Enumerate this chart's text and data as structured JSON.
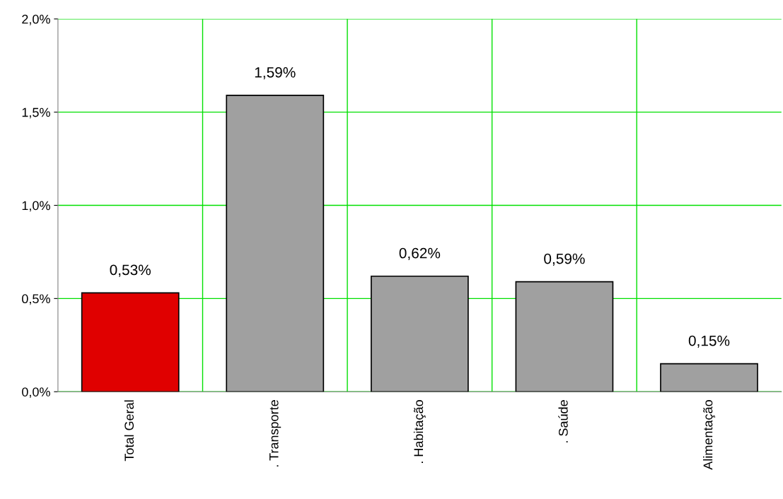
{
  "chart_data": {
    "type": "bar",
    "categories": [
      "Total Geral",
      ". Transporte",
      ". Habitação",
      ". Saúde",
      "Alimentação"
    ],
    "values": [
      0.53,
      1.59,
      0.62,
      0.59,
      0.15
    ],
    "colors": [
      "#e00000",
      "#a0a0a0",
      "#a0a0a0",
      "#a0a0a0",
      "#a0a0a0"
    ],
    "value_labels": [
      "0,53%",
      "1,59%",
      "0,62%",
      "0,59%",
      "0,15%"
    ],
    "ylim": [
      0,
      2.0
    ],
    "yticks": [
      {
        "value": 0,
        "label": "0,0%"
      },
      {
        "value": 0.5,
        "label": "0,5%"
      },
      {
        "value": 1.0,
        "label": "1,0%"
      },
      {
        "value": 1.5,
        "label": "1,5%"
      },
      {
        "value": 2.0,
        "label": "2,0%"
      }
    ],
    "grid": true,
    "legend": false
  }
}
